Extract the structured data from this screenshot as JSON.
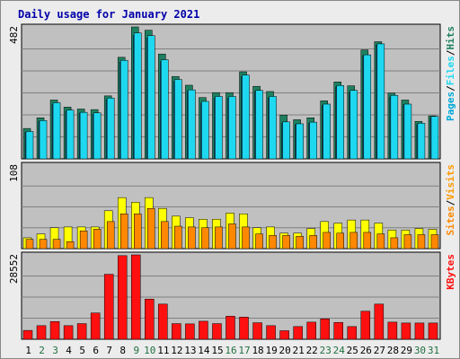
{
  "chart_data": {
    "type": "bar",
    "title": "Daily usage for January 2021",
    "categories": [
      "1",
      "2",
      "3",
      "4",
      "5",
      "6",
      "7",
      "8",
      "9",
      "10",
      "11",
      "12",
      "13",
      "14",
      "15",
      "16",
      "17",
      "18",
      "19",
      "20",
      "21",
      "22",
      "23",
      "24",
      "25",
      "26",
      "27",
      "28",
      "29",
      "30",
      "31"
    ],
    "weekend_days": [
      "2",
      "3",
      "9",
      "10",
      "16",
      "17",
      "23",
      "24",
      "30",
      "31"
    ],
    "colors": {
      "background": "#c0c0c0",
      "frame": "#ececec",
      "title": "#0000aa",
      "grid": "#808080",
      "hits": "#1e8060",
      "files": "#1ed8f0",
      "pages": "#00a8d8",
      "visits": "#ffff00",
      "sites": "#ff8800",
      "kbytes": "#ff1010",
      "weekday_label": "#000000",
      "weekend_label": "#207040"
    },
    "panels": [
      {
        "id": "hits-files-pages",
        "ymax_label": "482",
        "ymax": 482,
        "legend": [
          {
            "text": "Pages",
            "color": "#00a8d8"
          },
          {
            "text": "/",
            "color": "#000000"
          },
          {
            "text": "Files",
            "color": "#1ed8f0"
          },
          {
            "text": "/",
            "color": "#000000"
          },
          {
            "text": "Hits",
            "color": "#1e8060"
          }
        ],
        "series": [
          {
            "name": "Hits",
            "values": [
              111,
              150,
              215,
              189,
              182,
              180,
              230,
              371,
              482,
              470,
              383,
              301,
              269,
              224,
              242,
              242,
              318,
              265,
              246,
              160,
              143,
              150,
              212,
              281,
              267,
              398,
              428,
              240,
              215,
              137,
              157
            ]
          },
          {
            "name": "Files",
            "values": [
              97,
              136,
              199,
              174,
              167,
              163,
              216,
              353,
              451,
              442,
              355,
              283,
              247,
              204,
              222,
              222,
              301,
              246,
              222,
              131,
              125,
              130,
              195,
              262,
              243,
              377,
              416,
              226,
              198,
              125,
              149
            ]
          },
          {
            "name": "Pages",
            "values": [
              100,
              140,
              205,
              178,
              170,
              168,
              222,
              360,
              460,
              450,
              362,
              290,
              252,
              210,
              228,
              228,
              306,
              250,
              228,
              135,
              128,
              134,
              200,
              268,
              250,
              380,
              420,
              232,
              200,
              130,
              155
            ]
          }
        ]
      },
      {
        "id": "visits-sites",
        "ymax_label": "108",
        "ymax": 108,
        "legend": [
          {
            "text": "Sites",
            "color": "#ff8800"
          },
          {
            "text": "/",
            "color": "#000000"
          },
          {
            "text": "Visits",
            "color": "#ff9900"
          }
        ],
        "series": [
          {
            "name": "Visits",
            "values": [
              14,
              19,
              27,
              28,
              28,
              28,
              49,
              66,
              60,
              66,
              52,
              42,
              40,
              38,
              38,
              46,
              45,
              27,
              28,
              20,
              20,
              26,
              35,
              33,
              37,
              37,
              33,
              24,
              24,
              26,
              25
            ]
          },
          {
            "name": "Sites",
            "values": [
              12,
              12,
              12,
              9,
              23,
              25,
              35,
              45,
              45,
              52,
              35,
              29,
              28,
              27,
              28,
              32,
              28,
              19,
              17,
              17,
              16,
              17,
              21,
              20,
              21,
              21,
              19,
              14,
              18,
              18,
              18
            ]
          }
        ]
      },
      {
        "id": "kbytes",
        "ymax_label": "28552",
        "ymax": 28552,
        "legend": [
          {
            "text": "KBytes",
            "color": "#ff1010"
          }
        ],
        "series": [
          {
            "name": "KBytes",
            "values": [
              3000,
              4600,
              6000,
              4600,
              5300,
              8900,
              22000,
              28300,
              28552,
              13600,
              11900,
              5300,
              5200,
              6100,
              5300,
              7800,
              7500,
              5600,
              4600,
              2900,
              4300,
              5800,
              6900,
              5700,
              4300,
              9500,
              11900,
              5800,
              5500,
              5500,
              5500
            ]
          }
        ]
      }
    ]
  }
}
